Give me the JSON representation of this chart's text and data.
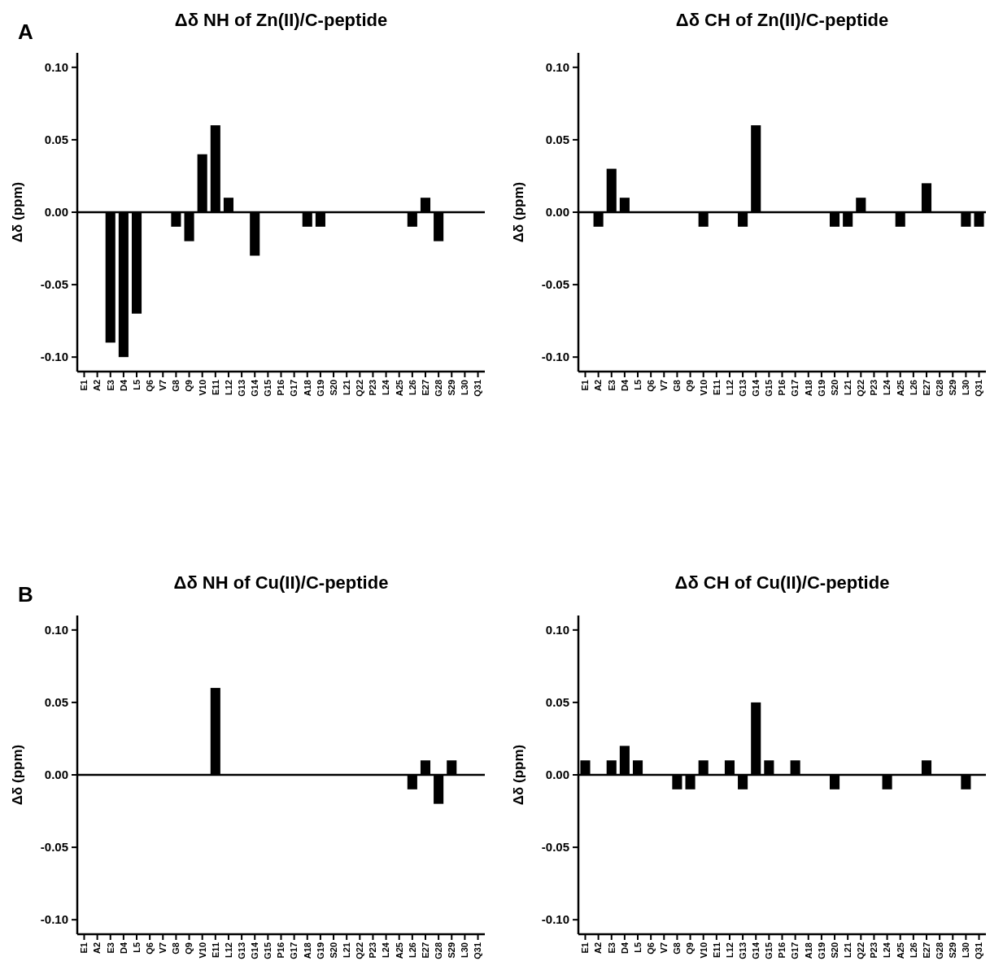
{
  "chart_data": [
    {
      "type": "bar",
      "title": "Δδ NH of Zn(II)/C-peptide",
      "ylabel": "Δδ (ppm)",
      "annotations": [
        "A"
      ],
      "categories": [
        "E1",
        "A2",
        "E3",
        "D4",
        "L5",
        "Q6",
        "V7",
        "G8",
        "Q9",
        "V10",
        "E11",
        "L12",
        "G13",
        "G14",
        "G15",
        "P16",
        "G17",
        "A18",
        "G19",
        "S20",
        "L21",
        "Q22",
        "P23",
        "L24",
        "A25",
        "L26",
        "E27",
        "G28",
        "S29",
        "L30",
        "Q31"
      ],
      "values": [
        0,
        0,
        -0.09,
        -0.1,
        -0.07,
        0,
        0,
        -0.01,
        -0.02,
        0.04,
        0.06,
        0.01,
        0,
        -0.03,
        0,
        0,
        0,
        -0.01,
        -0.01,
        0,
        0,
        0,
        0,
        0,
        0,
        -0.01,
        0.01,
        -0.02,
        0,
        0,
        0
      ],
      "color": "#000000",
      "ylim": [
        -0.11,
        0.11
      ],
      "yticks": [
        {
          "value": -0.1,
          "label": "-0.10"
        },
        {
          "value": -0.05,
          "label": "-0.05"
        },
        {
          "value": 0,
          "label": "0.00"
        },
        {
          "value": 0.05,
          "label": "0.05"
        },
        {
          "value": 0.1,
          "label": "0.10"
        }
      ],
      "ref_lines": [
        {
          "axis": "y",
          "value": 0
        }
      ]
    },
    {
      "type": "bar",
      "title": "Δδ CH of Zn(II)/C-peptide",
      "ylabel": "Δδ (ppm)",
      "categories": [
        "E1",
        "A2",
        "E3",
        "D4",
        "L5",
        "Q6",
        "V7",
        "G8",
        "Q9",
        "V10",
        "E11",
        "L12",
        "G13",
        "G14",
        "G15",
        "P16",
        "G17",
        "A18",
        "G19",
        "S20",
        "L21",
        "Q22",
        "P23",
        "L24",
        "A25",
        "L26",
        "E27",
        "G28",
        "S29",
        "L30",
        "Q31"
      ],
      "values": [
        0,
        -0.01,
        0.03,
        0.01,
        0,
        0,
        0,
        0,
        0,
        -0.01,
        0,
        0,
        -0.01,
        0.06,
        0,
        0,
        0,
        0,
        0,
        -0.01,
        -0.01,
        0.01,
        0,
        0,
        -0.01,
        0,
        0.02,
        0,
        0,
        -0.01,
        -0.01
      ],
      "color": "#000000",
      "ylim": [
        -0.11,
        0.11
      ],
      "yticks": [
        {
          "value": -0.1,
          "label": "-0.10"
        },
        {
          "value": -0.05,
          "label": "-0.05"
        },
        {
          "value": 0,
          "label": "0.00"
        },
        {
          "value": 0.05,
          "label": "0.05"
        },
        {
          "value": 0.1,
          "label": "0.10"
        }
      ],
      "ref_lines": [
        {
          "axis": "y",
          "value": 0
        }
      ]
    },
    {
      "type": "bar",
      "title": "Δδ NH of Cu(II)/C-peptide",
      "ylabel": "Δδ (ppm)",
      "annotations": [
        "B"
      ],
      "categories": [
        "E1",
        "A2",
        "E3",
        "D4",
        "L5",
        "Q6",
        "V7",
        "G8",
        "Q9",
        "V10",
        "E11",
        "L12",
        "G13",
        "G14",
        "G15",
        "P16",
        "G17",
        "A18",
        "G19",
        "S20",
        "L21",
        "Q22",
        "P23",
        "L24",
        "A25",
        "L26",
        "E27",
        "G28",
        "S29",
        "L30",
        "Q31"
      ],
      "values": [
        0,
        0,
        0,
        0,
        0,
        0,
        0,
        0,
        0,
        0,
        0.06,
        0,
        0,
        0,
        0,
        0,
        0,
        0,
        0,
        0,
        0,
        0,
        0,
        0,
        0,
        -0.01,
        0.01,
        -0.02,
        0.01,
        0,
        0
      ],
      "color": "#000000",
      "ylim": [
        -0.11,
        0.11
      ],
      "yticks": [
        {
          "value": -0.1,
          "label": "-0.10"
        },
        {
          "value": -0.05,
          "label": "-0.05"
        },
        {
          "value": 0,
          "label": "0.00"
        },
        {
          "value": 0.05,
          "label": "0.05"
        },
        {
          "value": 0.1,
          "label": "0.10"
        }
      ],
      "ref_lines": [
        {
          "axis": "y",
          "value": 0
        }
      ]
    },
    {
      "type": "bar",
      "title": "Δδ CH of Cu(II)/C-peptide",
      "ylabel": "Δδ (ppm)",
      "categories": [
        "E1",
        "A2",
        "E3",
        "D4",
        "L5",
        "Q6",
        "V7",
        "G8",
        "Q9",
        "V10",
        "E11",
        "L12",
        "G13",
        "G14",
        "G15",
        "P16",
        "G17",
        "A18",
        "G19",
        "S20",
        "L21",
        "Q22",
        "P23",
        "L24",
        "A25",
        "L26",
        "E27",
        "G28",
        "S29",
        "L30",
        "Q31"
      ],
      "values": [
        0.01,
        0,
        0.01,
        0.02,
        0.01,
        0,
        0,
        -0.01,
        -0.01,
        0.01,
        0,
        0.01,
        -0.01,
        0.05,
        0.01,
        0,
        0.01,
        0,
        0,
        -0.01,
        0,
        0,
        0,
        -0.01,
        0,
        0,
        0.01,
        0,
        0,
        -0.01,
        0
      ],
      "color": "#000000",
      "ylim": [
        -0.11,
        0.11
      ],
      "yticks": [
        {
          "value": -0.1,
          "label": "-0.10"
        },
        {
          "value": -0.05,
          "label": "-0.05"
        },
        {
          "value": 0,
          "label": "0.00"
        },
        {
          "value": 0.05,
          "label": "0.05"
        },
        {
          "value": 0.1,
          "label": "0.10"
        }
      ],
      "ref_lines": [
        {
          "axis": "y",
          "value": 0
        }
      ]
    }
  ]
}
